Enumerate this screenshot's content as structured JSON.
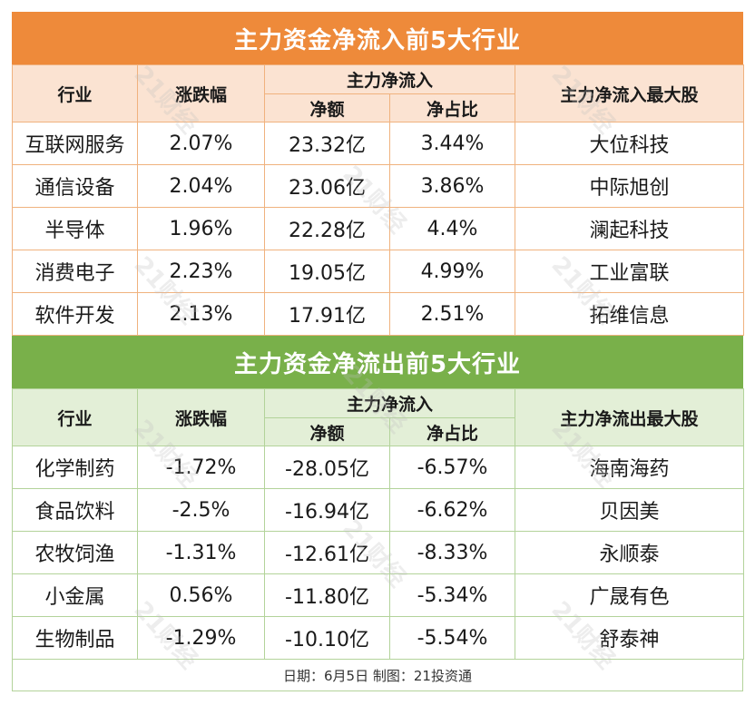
{
  "inflow": {
    "title": "主力资金净流入前5大行业",
    "headers": {
      "industry": "行业",
      "change": "涨跌幅",
      "group": "主力净流入",
      "amount": "净额",
      "ratio": "净占比",
      "top_stock": "主力净流入最大股"
    },
    "rows": [
      {
        "industry": "互联网服务",
        "change": "2.07%",
        "amount": "23.32亿",
        "ratio": "3.44%",
        "top_stock": "大位科技"
      },
      {
        "industry": "通信设备",
        "change": "2.04%",
        "amount": "23.06亿",
        "ratio": "3.86%",
        "top_stock": "中际旭创"
      },
      {
        "industry": "半导体",
        "change": "1.96%",
        "amount": "22.28亿",
        "ratio": "4.4%",
        "top_stock": "澜起科技"
      },
      {
        "industry": "消费电子",
        "change": "2.23%",
        "amount": "19.05亿",
        "ratio": "4.99%",
        "top_stock": "工业富联"
      },
      {
        "industry": "软件开发",
        "change": "2.13%",
        "amount": "17.91亿",
        "ratio": "2.51%",
        "top_stock": "拓维信息"
      }
    ]
  },
  "outflow": {
    "title": "主力资金净流出前5大行业",
    "headers": {
      "industry": "行业",
      "change": "涨跌幅",
      "group": "主力净流入",
      "amount": "净额",
      "ratio": "净占比",
      "top_stock": "主力净流出最大股"
    },
    "rows": [
      {
        "industry": "化学制药",
        "change": "-1.72%",
        "amount": "-28.05亿",
        "ratio": "-6.57%",
        "top_stock": "海南海药"
      },
      {
        "industry": "食品饮料",
        "change": "-2.5%",
        "amount": "-16.94亿",
        "ratio": "-6.62%",
        "top_stock": "贝因美"
      },
      {
        "industry": "农牧饲渔",
        "change": "-1.31%",
        "amount": "-12.61亿",
        "ratio": "-8.33%",
        "top_stock": "永顺泰"
      },
      {
        "industry": "小金属",
        "change": "0.56%",
        "amount": "-11.80亿",
        "ratio": "-5.34%",
        "top_stock": "广晟有色"
      },
      {
        "industry": "生物制品",
        "change": "-1.29%",
        "amount": "-10.10亿",
        "ratio": "-5.54%",
        "top_stock": "舒泰神"
      }
    ]
  },
  "footer": "日期：6月5日 制图：21投资通",
  "watermark": "21财经",
  "colors": {
    "inflow_accent": "#ee8a3a",
    "outflow_accent": "#79b04a"
  }
}
